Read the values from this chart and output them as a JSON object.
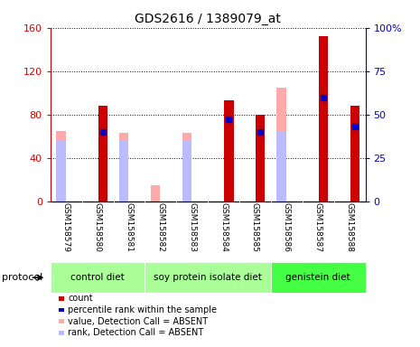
{
  "title": "GDS2616 / 1389079_at",
  "samples": [
    "GSM158579",
    "GSM158580",
    "GSM158581",
    "GSM158582",
    "GSM158583",
    "GSM158584",
    "GSM158585",
    "GSM158586",
    "GSM158587",
    "GSM158588"
  ],
  "count": [
    0,
    88,
    0,
    0,
    0,
    93,
    80,
    0,
    152,
    88
  ],
  "percentile_rank": [
    0,
    40,
    0,
    0,
    0,
    47,
    40,
    0,
    60,
    43
  ],
  "value_absent": [
    65,
    0,
    63,
    15,
    63,
    0,
    0,
    105,
    0,
    0
  ],
  "rank_absent": [
    35,
    0,
    35,
    0,
    35,
    0,
    0,
    40,
    0,
    0
  ],
  "protocol_groups": [
    {
      "label": "control diet",
      "start": 0,
      "end": 2,
      "color": "#aaff99"
    },
    {
      "label": "soy protein isolate diet",
      "start": 3,
      "end": 6,
      "color": "#aaff99"
    },
    {
      "label": "genistein diet",
      "start": 7,
      "end": 9,
      "color": "#44ff44"
    }
  ],
  "ylim_left": [
    0,
    160
  ],
  "ylim_right": [
    0,
    100
  ],
  "yticks_left": [
    0,
    40,
    80,
    120,
    160
  ],
  "yticks_right": [
    0,
    25,
    50,
    75,
    100
  ],
  "ytick_labels_left": [
    "0",
    "40",
    "80",
    "120",
    "160"
  ],
  "ytick_labels_right": [
    "0",
    "25",
    "50",
    "75",
    "100%"
  ],
  "left_axis_color": "#cc0000",
  "right_axis_color": "#0000cc",
  "count_color": "#cc0000",
  "rank_color": "#0000cc",
  "value_absent_color": "#ffaaaa",
  "rank_absent_color": "#bbbbff",
  "bg_labels": "#cccccc",
  "grid_color": "#000000"
}
